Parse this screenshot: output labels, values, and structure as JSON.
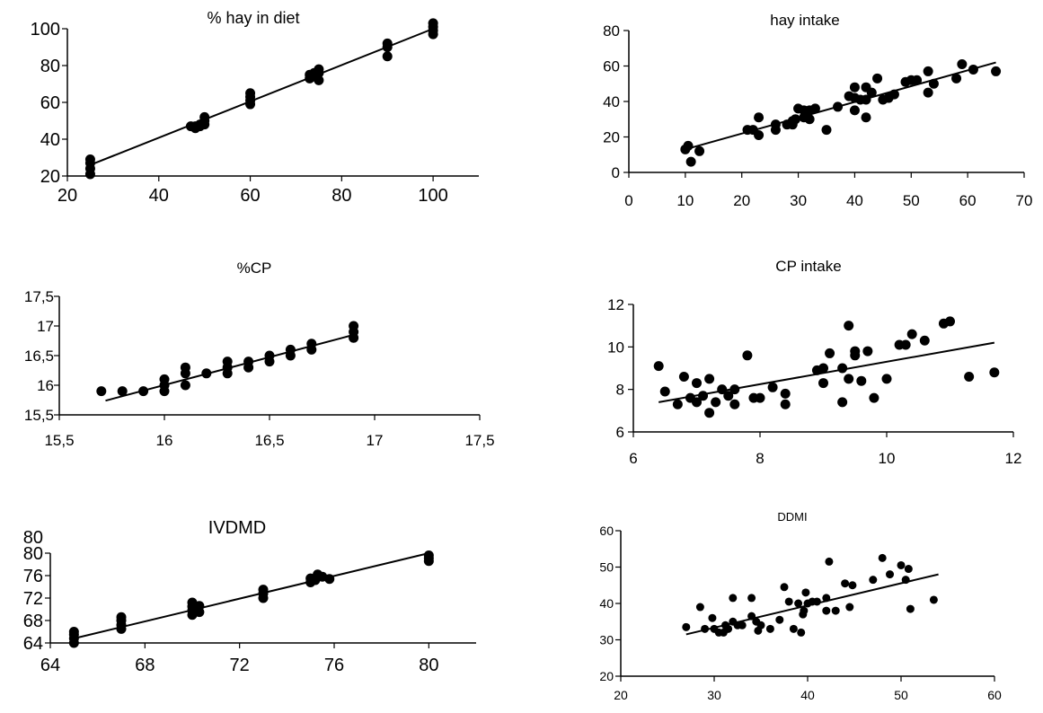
{
  "chart_data": [
    {
      "type": "scatter",
      "title": "% hay in diet",
      "xlim": [
        20,
        110
      ],
      "ylim": [
        20,
        100
      ],
      "xticks": [
        "20",
        "40",
        "60",
        "80",
        "100"
      ],
      "yticks": [
        "20",
        "40",
        "60",
        "80",
        "100"
      ],
      "grid": false,
      "points": [
        [
          25,
          21
        ],
        [
          25,
          24
        ],
        [
          25,
          27
        ],
        [
          25,
          29
        ],
        [
          47,
          47
        ],
        [
          48,
          47
        ],
        [
          48,
          46
        ],
        [
          49,
          48
        ],
        [
          49,
          47
        ],
        [
          50,
          48
        ],
        [
          50,
          50
        ],
        [
          50,
          52
        ],
        [
          60,
          59
        ],
        [
          60,
          61
        ],
        [
          60,
          63
        ],
        [
          60,
          65
        ],
        [
          73,
          75
        ],
        [
          73,
          73
        ],
        [
          74,
          76
        ],
        [
          74,
          74
        ],
        [
          75,
          72
        ],
        [
          75,
          76
        ],
        [
          75,
          78
        ],
        [
          90,
          85
        ],
        [
          90,
          90
        ],
        [
          90,
          92
        ],
        [
          100,
          97
        ],
        [
          100,
          99
        ],
        [
          100,
          101
        ],
        [
          100,
          103
        ]
      ],
      "trendline": [
        [
          25,
          26
        ],
        [
          100,
          100
        ]
      ]
    },
    {
      "type": "scatter",
      "title": "hay intake",
      "xlim": [
        0,
        70
      ],
      "ylim": [
        0,
        80
      ],
      "xticks": [
        "0",
        "10",
        "20",
        "30",
        "40",
        "50",
        "60",
        "70"
      ],
      "yticks": [
        "0",
        "20",
        "40",
        "60",
        "80"
      ],
      "grid": false,
      "points": [
        [
          10,
          13
        ],
        [
          10.5,
          15
        ],
        [
          11,
          6
        ],
        [
          12.5,
          12
        ],
        [
          21,
          24
        ],
        [
          22,
          24
        ],
        [
          23,
          21
        ],
        [
          23,
          31
        ],
        [
          26,
          27
        ],
        [
          26,
          24
        ],
        [
          28,
          27
        ],
        [
          29,
          27
        ],
        [
          29,
          29
        ],
        [
          29.5,
          30
        ],
        [
          30,
          36
        ],
        [
          31,
          31
        ],
        [
          31,
          35
        ],
        [
          32,
          35
        ],
        [
          32,
          30
        ],
        [
          33,
          36
        ],
        [
          35,
          24
        ],
        [
          37,
          37
        ],
        [
          39,
          43
        ],
        [
          40,
          42
        ],
        [
          40,
          48
        ],
        [
          40,
          35
        ],
        [
          41,
          41
        ],
        [
          42,
          31
        ],
        [
          42,
          48
        ],
        [
          42,
          41
        ],
        [
          43,
          45
        ],
        [
          44,
          53
        ],
        [
          45,
          41
        ],
        [
          46,
          42
        ],
        [
          47,
          44
        ],
        [
          49,
          51
        ],
        [
          50,
          52
        ],
        [
          51,
          52
        ],
        [
          53,
          57
        ],
        [
          53,
          45
        ],
        [
          54,
          50
        ],
        [
          58,
          53
        ],
        [
          59,
          61
        ],
        [
          61,
          58
        ],
        [
          65,
          57
        ]
      ],
      "trendline": [
        [
          10,
          13
        ],
        [
          65,
          62
        ]
      ]
    },
    {
      "type": "scatter",
      "title": "%CP",
      "xlim": [
        15.5,
        17.5
      ],
      "ylim": [
        15.5,
        17.5
      ],
      "xticks": [
        "15,5",
        "16",
        "16,5",
        "17",
        "17,5"
      ],
      "yticks": [
        "15,5",
        "16",
        "16,5",
        "17",
        "17,5"
      ],
      "grid": false,
      "points": [
        [
          15.7,
          15.9
        ],
        [
          15.8,
          15.9
        ],
        [
          15.9,
          15.9
        ],
        [
          16,
          15.9
        ],
        [
          16,
          16
        ],
        [
          16,
          16.1
        ],
        [
          16.1,
          16
        ],
        [
          16.1,
          16.2
        ],
        [
          16.1,
          16.3
        ],
        [
          16.2,
          16.2
        ],
        [
          16.3,
          16.2
        ],
        [
          16.3,
          16.3
        ],
        [
          16.3,
          16.4
        ],
        [
          16.4,
          16.3
        ],
        [
          16.4,
          16.4
        ],
        [
          16.5,
          16.4
        ],
        [
          16.5,
          16.5
        ],
        [
          16.6,
          16.5
        ],
        [
          16.6,
          16.6
        ],
        [
          16.7,
          16.6
        ],
        [
          16.7,
          16.7
        ],
        [
          16.9,
          16.8
        ],
        [
          16.9,
          16.9
        ],
        [
          16.9,
          17
        ]
      ],
      "trendline": [
        [
          15.72,
          15.74
        ],
        [
          16.9,
          16.85
        ]
      ]
    },
    {
      "type": "scatter",
      "title": "CP intake",
      "xlim": [
        6,
        12
      ],
      "ylim": [
        6,
        12
      ],
      "xticks": [
        "6",
        "8",
        "10",
        "12"
      ],
      "yticks": [
        "6",
        "8",
        "10",
        "12"
      ],
      "grid": false,
      "points": [
        [
          6.4,
          9.1
        ],
        [
          6.5,
          7.9
        ],
        [
          6.7,
          7.3
        ],
        [
          6.8,
          8.6
        ],
        [
          6.9,
          7.6
        ],
        [
          7,
          7.4
        ],
        [
          7,
          8.3
        ],
        [
          7.1,
          7.7
        ],
        [
          7.2,
          6.9
        ],
        [
          7.2,
          8.5
        ],
        [
          7.3,
          7.4
        ],
        [
          7.4,
          8
        ],
        [
          7.5,
          7.7
        ],
        [
          7.6,
          8
        ],
        [
          7.6,
          7.3
        ],
        [
          7.8,
          9.6
        ],
        [
          7.9,
          7.6
        ],
        [
          8,
          7.6
        ],
        [
          8.2,
          8.1
        ],
        [
          8.4,
          7.3
        ],
        [
          8.4,
          7.8
        ],
        [
          8.9,
          8.9
        ],
        [
          9,
          9
        ],
        [
          9,
          8.3
        ],
        [
          9.1,
          9.7
        ],
        [
          9.3,
          9
        ],
        [
          9.3,
          7.4
        ],
        [
          9.4,
          11
        ],
        [
          9.4,
          8.5
        ],
        [
          9.5,
          9.6
        ],
        [
          9.5,
          9.8
        ],
        [
          9.6,
          8.4
        ],
        [
          9.7,
          9.8
        ],
        [
          9.8,
          7.6
        ],
        [
          10,
          8.5
        ],
        [
          10.2,
          10.1
        ],
        [
          10.3,
          10.1
        ],
        [
          10.4,
          10.6
        ],
        [
          10.6,
          10.3
        ],
        [
          10.9,
          11.1
        ],
        [
          11,
          11.2
        ],
        [
          11.3,
          8.6
        ],
        [
          11.7,
          8.8
        ]
      ],
      "trendline": [
        [
          6.4,
          7.4
        ],
        [
          11.7,
          10.2
        ]
      ]
    },
    {
      "type": "scatter",
      "title": "IVDMD",
      "xlim": [
        64,
        82
      ],
      "ylim": [
        64,
        80
      ],
      "xticks": [
        "64",
        "68",
        "72",
        "76",
        "80"
      ],
      "yticks": [
        "64",
        "68",
        "72",
        "76",
        "80"
      ],
      "extra_yticks": [
        "80"
      ],
      "grid": false,
      "points": [
        [
          65,
          64
        ],
        [
          65,
          64.8
        ],
        [
          65,
          65.5
        ],
        [
          65,
          66
        ],
        [
          67,
          66.5
        ],
        [
          67,
          67.2
        ],
        [
          67,
          68
        ],
        [
          67,
          68.6
        ],
        [
          70,
          69
        ],
        [
          70,
          69.8
        ],
        [
          70,
          70.5
        ],
        [
          70,
          71.2
        ],
        [
          70.3,
          69.5
        ],
        [
          70.3,
          70.6
        ],
        [
          73,
          72
        ],
        [
          73,
          72.8
        ],
        [
          73,
          73.5
        ],
        [
          75,
          74.8
        ],
        [
          75,
          75.5
        ],
        [
          75.2,
          75.2
        ],
        [
          75.3,
          76.2
        ],
        [
          75.5,
          75.8
        ],
        [
          75.8,
          75.4
        ],
        [
          80,
          78.6
        ],
        [
          80,
          79.1
        ],
        [
          80,
          79.6
        ]
      ],
      "trendline": [
        [
          65,
          64.8
        ],
        [
          80,
          80
        ]
      ]
    },
    {
      "type": "scatter",
      "title": "DDMI",
      "xlim": [
        20,
        60
      ],
      "ylim": [
        20,
        60
      ],
      "xticks": [
        "20",
        "30",
        "40",
        "50",
        "60"
      ],
      "yticks": [
        "20",
        "30",
        "40",
        "50",
        "60"
      ],
      "grid": false,
      "points": [
        [
          27,
          33.5
        ],
        [
          28.5,
          39
        ],
        [
          29,
          33
        ],
        [
          29.8,
          36
        ],
        [
          30,
          33
        ],
        [
          30.5,
          32
        ],
        [
          31,
          32
        ],
        [
          31.2,
          34
        ],
        [
          31.5,
          33
        ],
        [
          32,
          35
        ],
        [
          32,
          41.5
        ],
        [
          32.5,
          34
        ],
        [
          33,
          34
        ],
        [
          34,
          41.5
        ],
        [
          34,
          36.5
        ],
        [
          34.5,
          35
        ],
        [
          34.7,
          32.5
        ],
        [
          35,
          34
        ],
        [
          36,
          33
        ],
        [
          37,
          35.5
        ],
        [
          37.5,
          44.5
        ],
        [
          38,
          40.5
        ],
        [
          38.5,
          33
        ],
        [
          39,
          40
        ],
        [
          39.3,
          32
        ],
        [
          39.5,
          37
        ],
        [
          39.6,
          38
        ],
        [
          39.8,
          43
        ],
        [
          40,
          40
        ],
        [
          40.5,
          40.5
        ],
        [
          41,
          40.5
        ],
        [
          42,
          41.5
        ],
        [
          42,
          38
        ],
        [
          42.3,
          51.5
        ],
        [
          43,
          38
        ],
        [
          44,
          45.5
        ],
        [
          44.5,
          39
        ],
        [
          44.8,
          45
        ],
        [
          47,
          46.5
        ],
        [
          48,
          52.5
        ],
        [
          48.8,
          48
        ],
        [
          50,
          50.5
        ],
        [
          50.5,
          46.5
        ],
        [
          50.8,
          49.5
        ],
        [
          51,
          38.5
        ],
        [
          53.5,
          41
        ]
      ],
      "trendline": [
        [
          27,
          31.5
        ],
        [
          54,
          48
        ]
      ]
    }
  ]
}
